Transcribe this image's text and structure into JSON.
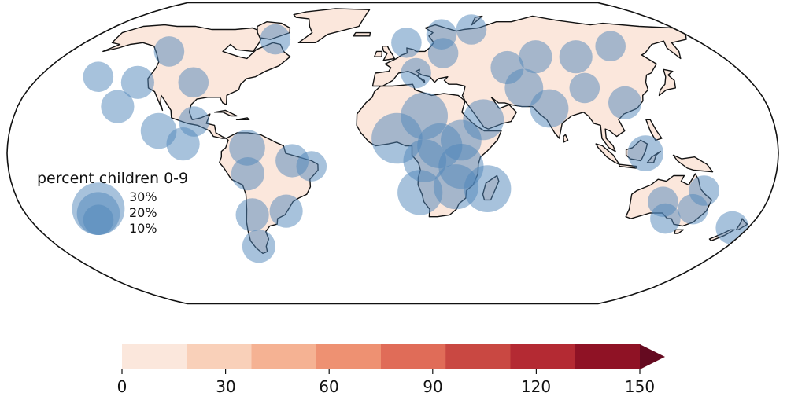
{
  "colors": {
    "ocean": "#ffffff",
    "land": "#fbe7dc",
    "coast": "#111111",
    "bubble": "#4f86b9",
    "scale": [
      "#fbe7dc",
      "#f9d0b9",
      "#f5b293",
      "#ee9172",
      "#e06c58",
      "#c94842",
      "#b42a33",
      "#8f1225",
      "#650a20"
    ]
  },
  "legend": {
    "title": "percent children 0-9",
    "items": [
      {
        "label": "30%",
        "value": 30
      },
      {
        "label": "20%",
        "value": 20
      },
      {
        "label": "10%",
        "value": 10
      }
    ]
  },
  "colorbar": {
    "ticks": [
      "0",
      "30",
      "60",
      "90",
      "120",
      "150"
    ],
    "min": 0,
    "max": 150,
    "extend": "max"
  },
  "bubbles": [
    {
      "lon": -125,
      "lat": 55,
      "pct": 10
    },
    {
      "lon": -70,
      "lat": 62,
      "pct": 10
    },
    {
      "lon": -150,
      "lat": 41,
      "pct": 10
    },
    {
      "lon": -128,
      "lat": 38,
      "pct": 12
    },
    {
      "lon": -100,
      "lat": 38,
      "pct": 10
    },
    {
      "lon": -132,
      "lat": 25,
      "pct": 12
    },
    {
      "lon": -110,
      "lat": 12,
      "pct": 14
    },
    {
      "lon": -94,
      "lat": 17,
      "pct": 10
    },
    {
      "lon": -98,
      "lat": 5,
      "pct": 12
    },
    {
      "lon": -68,
      "lat": 3,
      "pct": 14
    },
    {
      "lon": -47,
      "lat": -4,
      "pct": 12
    },
    {
      "lon": -68,
      "lat": -11,
      "pct": 12
    },
    {
      "lon": -38,
      "lat": -7,
      "pct": 10
    },
    {
      "lon": -69,
      "lat": -33,
      "pct": 12
    },
    {
      "lon": -52,
      "lat": -31,
      "pct": 12
    },
    {
      "lon": -72,
      "lat": -50,
      "pct": 12
    },
    {
      "lon": 8,
      "lat": 60,
      "pct": 10
    },
    {
      "lon": 28,
      "lat": 54,
      "pct": 10
    },
    {
      "lon": 12,
      "lat": 43,
      "pct": 10
    },
    {
      "lon": 15,
      "lat": 20,
      "pct": 24
    },
    {
      "lon": 2,
      "lat": 8,
      "pct": 28
    },
    {
      "lon": 22,
      "lat": 4,
      "pct": 22
    },
    {
      "lon": 32,
      "lat": 7,
      "pct": 18
    },
    {
      "lon": 15,
      "lat": -4,
      "pct": 20
    },
    {
      "lon": 32,
      "lat": -7,
      "pct": 22
    },
    {
      "lon": 13,
      "lat": -21,
      "pct": 22
    },
    {
      "lon": 30,
      "lat": -18,
      "pct": 22
    },
    {
      "lon": 45,
      "lat": -19,
      "pct": 24
    },
    {
      "lon": 43,
      "lat": 18,
      "pct": 18
    },
    {
      "lon": 60,
      "lat": 46,
      "pct": 12
    },
    {
      "lon": 78,
      "lat": 52,
      "pct": 12
    },
    {
      "lon": 100,
      "lat": 52,
      "pct": 12
    },
    {
      "lon": 65,
      "lat": 35,
      "pct": 16
    },
    {
      "lon": 75,
      "lat": 24,
      "pct": 16
    },
    {
      "lon": 95,
      "lat": 35,
      "pct": 10
    },
    {
      "lon": 112,
      "lat": 27,
      "pct": 12
    },
    {
      "lon": 118,
      "lat": 0,
      "pct": 14
    },
    {
      "lon": 130,
      "lat": -26,
      "pct": 10
    },
    {
      "lon": 148,
      "lat": -20,
      "pct": 10
    },
    {
      "lon": 146,
      "lat": -30,
      "pct": 10
    },
    {
      "lon": 135,
      "lat": -35,
      "pct": 10
    },
    {
      "lon": 172,
      "lat": -40,
      "pct": 12
    },
    {
      "lon": 30,
      "lat": 65,
      "pct": 10
    },
    {
      "lon": 50,
      "lat": 68,
      "pct": 10
    },
    {
      "lon": 125,
      "lat": 58,
      "pct": 10
    }
  ]
}
